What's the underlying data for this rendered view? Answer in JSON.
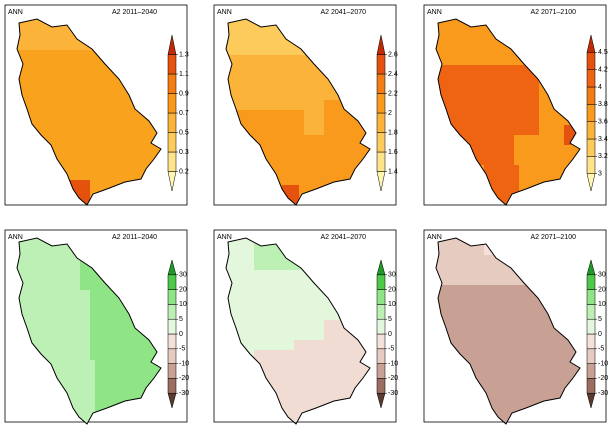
{
  "panels": [
    {
      "left": "ANN",
      "right": "A2 2011–2040",
      "ticks": [
        0.2,
        0.3,
        0.5,
        0.7,
        0.9,
        1.1,
        1.3
      ],
      "colors": [
        "#fff7b0",
        "#fde38a",
        "#fccb5c",
        "#fbb33a",
        "#f99a1c",
        "#f47c14",
        "#e5520e",
        "#c02a06"
      ],
      "fill": "#f9a21e"
    },
    {
      "left": "ANN",
      "right": "A2 2041–2070",
      "ticks": [
        1.4,
        1.6,
        1.8,
        2,
        2.2,
        2.4,
        2.6
      ],
      "colors": [
        "#fff7b0",
        "#fde38a",
        "#fccb5c",
        "#fbb33a",
        "#f99a1c",
        "#f47c14",
        "#e5520e",
        "#c02a06"
      ],
      "fill": "#fbb33a"
    },
    {
      "left": "ANN",
      "right": "A2 2071–2100",
      "ticks": [
        3,
        3.2,
        3.4,
        3.6,
        3.8,
        4,
        4.2,
        4.5
      ],
      "colors": [
        "#fff7b0",
        "#fde38a",
        "#fccb5c",
        "#fbb33a",
        "#f99a1c",
        "#f47c14",
        "#ef6412",
        "#e5520e",
        "#c02a06"
      ],
      "fill": "#f99a1c"
    },
    {
      "left": "ANN",
      "right": "A2 2011–2040",
      "ticks": [
        -30,
        -20,
        -10,
        -5,
        0,
        5,
        10,
        20,
        30
      ],
      "colors": [
        "#5a3a2e",
        "#9a6e60",
        "#c9a194",
        "#e6cbc0",
        "#f3e1da",
        "#e2f7dc",
        "#bdf0b4",
        "#8fe485",
        "#4ec94a",
        "#1f9a2a"
      ],
      "fill": "#8fe485"
    },
    {
      "left": "ANN",
      "right": "A2 2041–2070",
      "ticks": [
        -30,
        -20,
        -10,
        -5,
        0,
        5,
        10,
        20,
        30
      ],
      "colors": [
        "#5a3a2e",
        "#9a6e60",
        "#c9a194",
        "#e6cbc0",
        "#f3e1da",
        "#e2f7dc",
        "#bdf0b4",
        "#8fe485",
        "#4ec94a",
        "#1f9a2a"
      ],
      "fill": "#f0dcd3"
    },
    {
      "left": "ANN",
      "right": "A2 2071–2100",
      "ticks": [
        -30,
        -20,
        -10,
        -5,
        0,
        5,
        10,
        20,
        30
      ],
      "colors": [
        "#5a3a2e",
        "#9a6e60",
        "#c9a194",
        "#e6cbc0",
        "#f3e1da",
        "#e2f7dc",
        "#bdf0b4",
        "#8fe485",
        "#4ec94a",
        "#1f9a2a"
      ],
      "fill": "#c9a194"
    }
  ]
}
